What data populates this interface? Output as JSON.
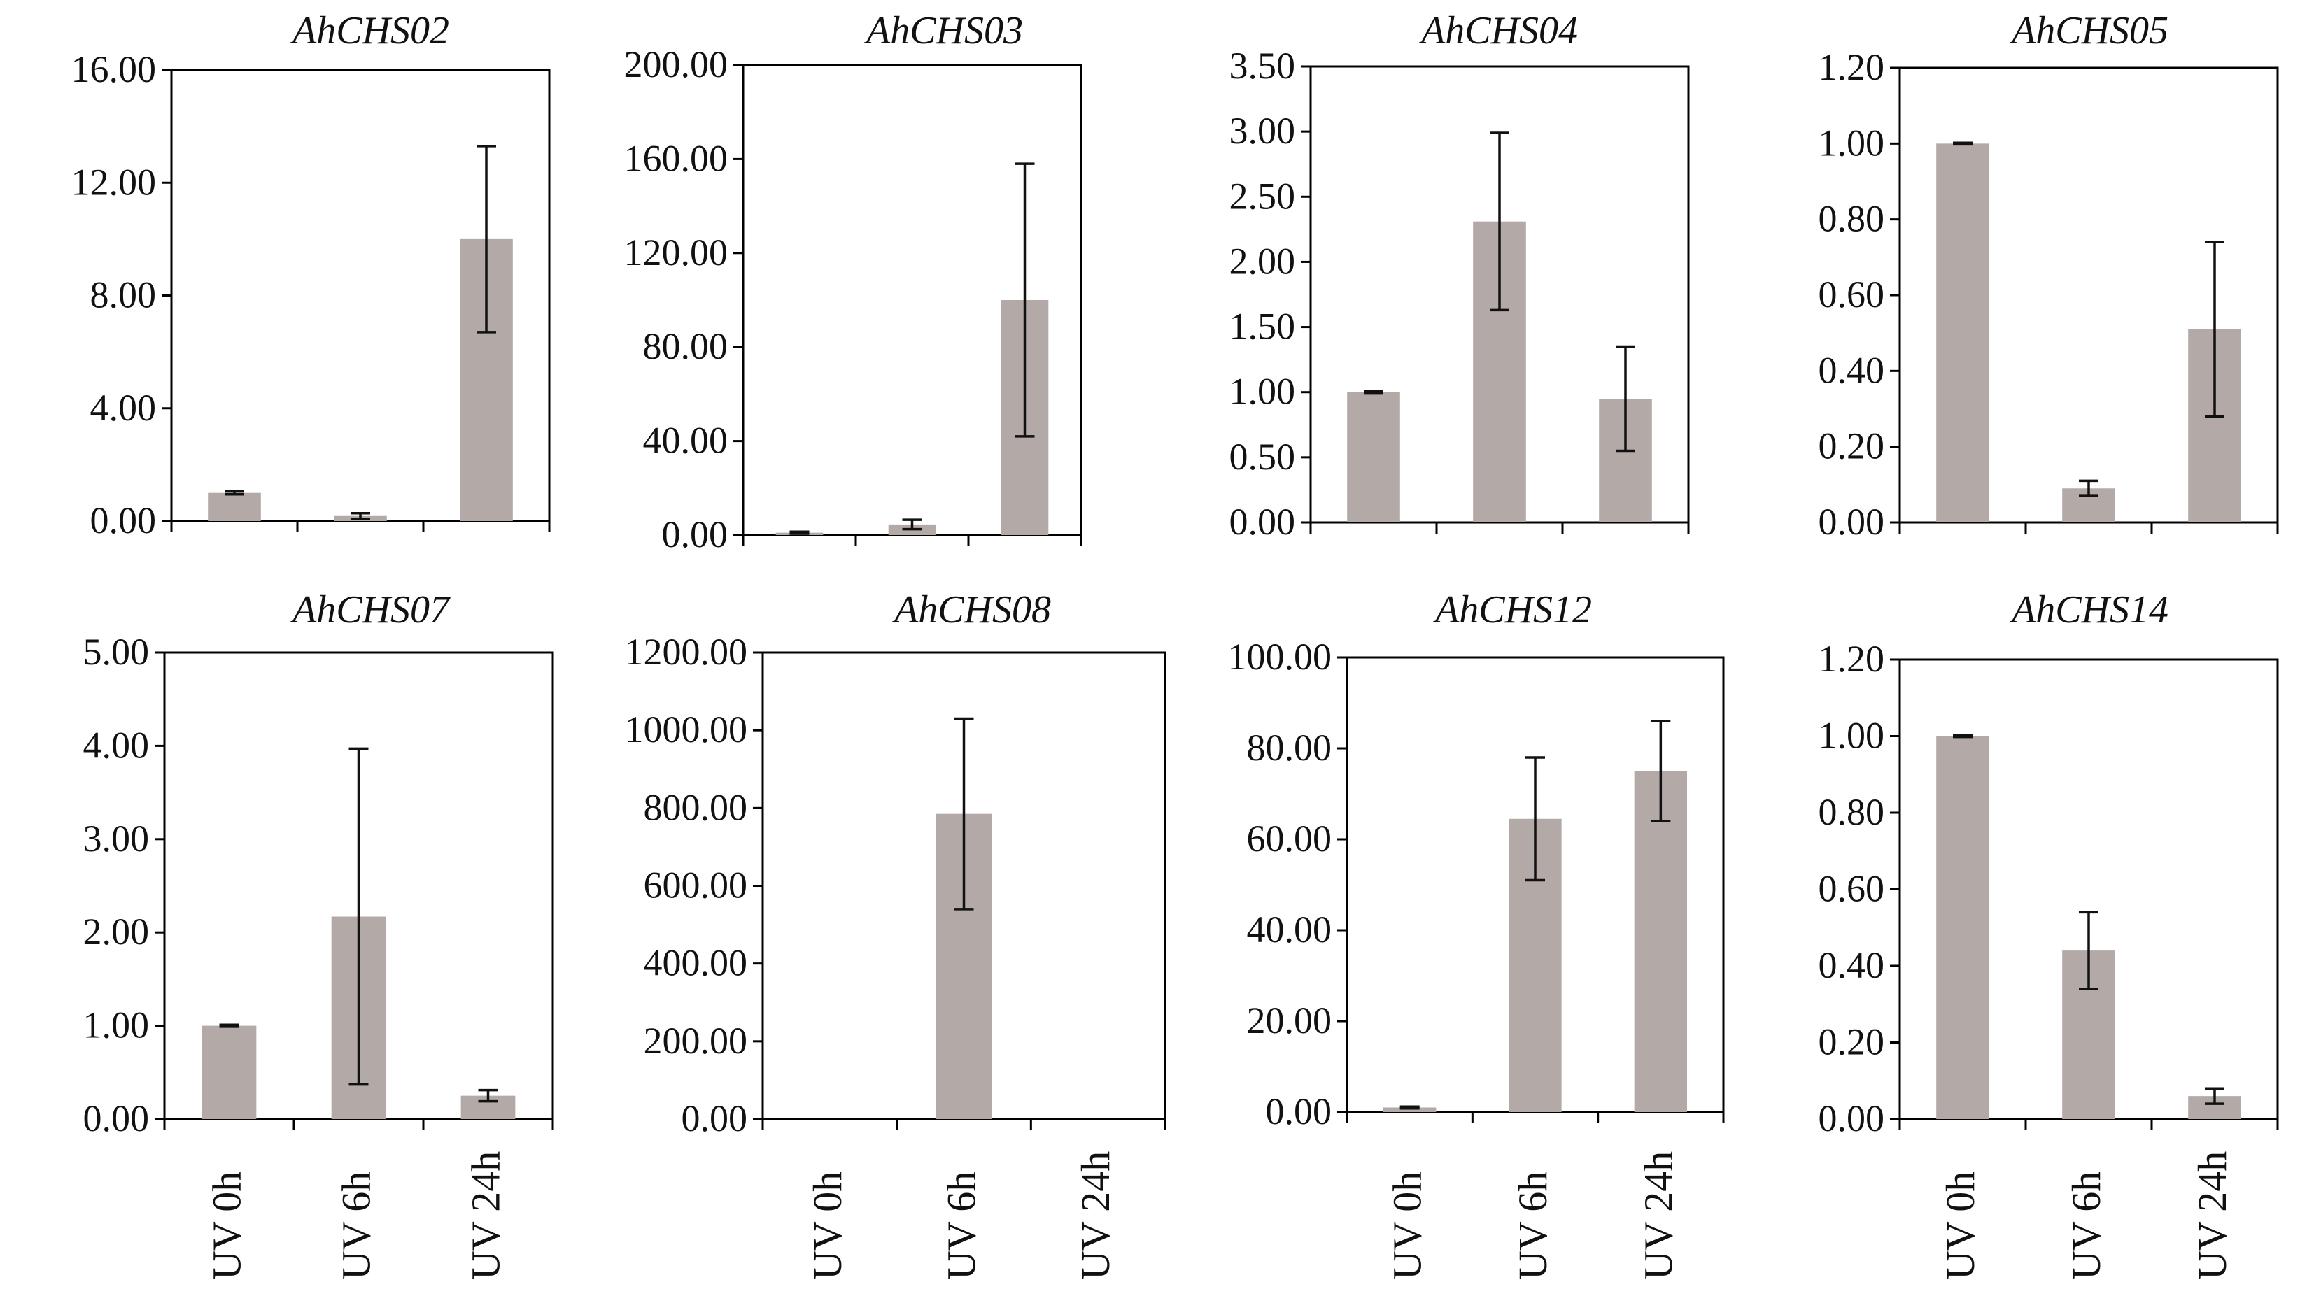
{
  "colors": {
    "bar": "#b3aaa8",
    "axis": "#000000",
    "errorbar": "#111111",
    "background": "#ffffff"
  },
  "chart_data": [
    {
      "type": "bar",
      "title": "AhCHS02",
      "categories": [
        "UV 0h",
        "UV 6h",
        "UV 24h"
      ],
      "values": [
        1.0,
        0.18,
        10.0
      ],
      "errors": [
        0.05,
        0.1,
        3.3
      ],
      "ylim": [
        0,
        16
      ],
      "yticks": [
        "0.00",
        "4.00",
        "8.00",
        "12.00",
        "16.00"
      ],
      "show_xlabels": false
    },
    {
      "type": "bar",
      "title": "AhCHS03",
      "categories": [
        "UV 0h",
        "UV 6h",
        "UV 24h"
      ],
      "values": [
        1.0,
        4.5,
        100.0
      ],
      "errors": [
        0.4,
        2.0,
        58.0
      ],
      "ylim": [
        0,
        200
      ],
      "yticks": [
        "0.00",
        "40.00",
        "80.00",
        "120.00",
        "160.00",
        "200.00"
      ],
      "show_xlabels": false
    },
    {
      "type": "bar",
      "title": "AhCHS04",
      "categories": [
        "UV 0h",
        "UV 6h",
        "UV 24h"
      ],
      "values": [
        1.0,
        2.31,
        0.95
      ],
      "errors": [
        0.01,
        0.68,
        0.4
      ],
      "ylim": [
        0,
        3.5
      ],
      "yticks": [
        "0.00",
        "0.50",
        "1.00",
        "1.50",
        "2.00",
        "2.50",
        "3.00",
        "3.50"
      ],
      "show_xlabels": false
    },
    {
      "type": "bar",
      "title": "AhCHS05",
      "categories": [
        "UV 0h",
        "UV 6h",
        "UV 24h"
      ],
      "values": [
        1.0,
        0.09,
        0.51
      ],
      "errors": [
        0.002,
        0.02,
        0.23
      ],
      "ylim": [
        0,
        1.2
      ],
      "yticks": [
        "0.00",
        "0.20",
        "0.40",
        "0.60",
        "0.80",
        "1.00",
        "1.20"
      ],
      "show_xlabels": false
    },
    {
      "type": "bar",
      "title": "AhCHS07",
      "categories": [
        "UV 0h",
        "UV 6h",
        "UV 24h"
      ],
      "values": [
        1.0,
        2.17,
        0.25
      ],
      "errors": [
        0.01,
        1.8,
        0.06
      ],
      "ylim": [
        0,
        5
      ],
      "yticks": [
        "0.00",
        "1.00",
        "2.00",
        "3.00",
        "4.00",
        "5.00"
      ],
      "show_xlabels": true
    },
    {
      "type": "bar",
      "title": "AhCHS08",
      "categories": [
        "UV 0h",
        "UV 6h",
        "UV 24h"
      ],
      "values": [
        0,
        785,
        0
      ],
      "errors": [
        0,
        245,
        0
      ],
      "ylim": [
        0,
        1200
      ],
      "yticks": [
        "0.00",
        "200.00",
        "400.00",
        "600.00",
        "800.00",
        "1000.00",
        "1200.00"
      ],
      "show_xlabels": true
    },
    {
      "type": "bar",
      "title": "AhCHS12",
      "categories": [
        "UV 0h",
        "UV 6h",
        "UV 24h"
      ],
      "values": [
        1.0,
        64.5,
        75.0
      ],
      "errors": [
        0.2,
        13.5,
        11.0
      ],
      "ylim": [
        0,
        100
      ],
      "yticks": [
        "0.00",
        "20.00",
        "40.00",
        "60.00",
        "80.00",
        "100.00"
      ],
      "show_xlabels": true
    },
    {
      "type": "bar",
      "title": "AhCHS14",
      "categories": [
        "UV 0h",
        "UV 6h",
        "UV 24h"
      ],
      "values": [
        1.0,
        0.44,
        0.06
      ],
      "errors": [
        0.002,
        0.1,
        0.02
      ],
      "ylim": [
        0,
        1.2
      ],
      "yticks": [
        "0.00",
        "0.20",
        "0.40",
        "0.60",
        "0.80",
        "1.00",
        "1.20"
      ],
      "show_xlabels": true
    }
  ]
}
